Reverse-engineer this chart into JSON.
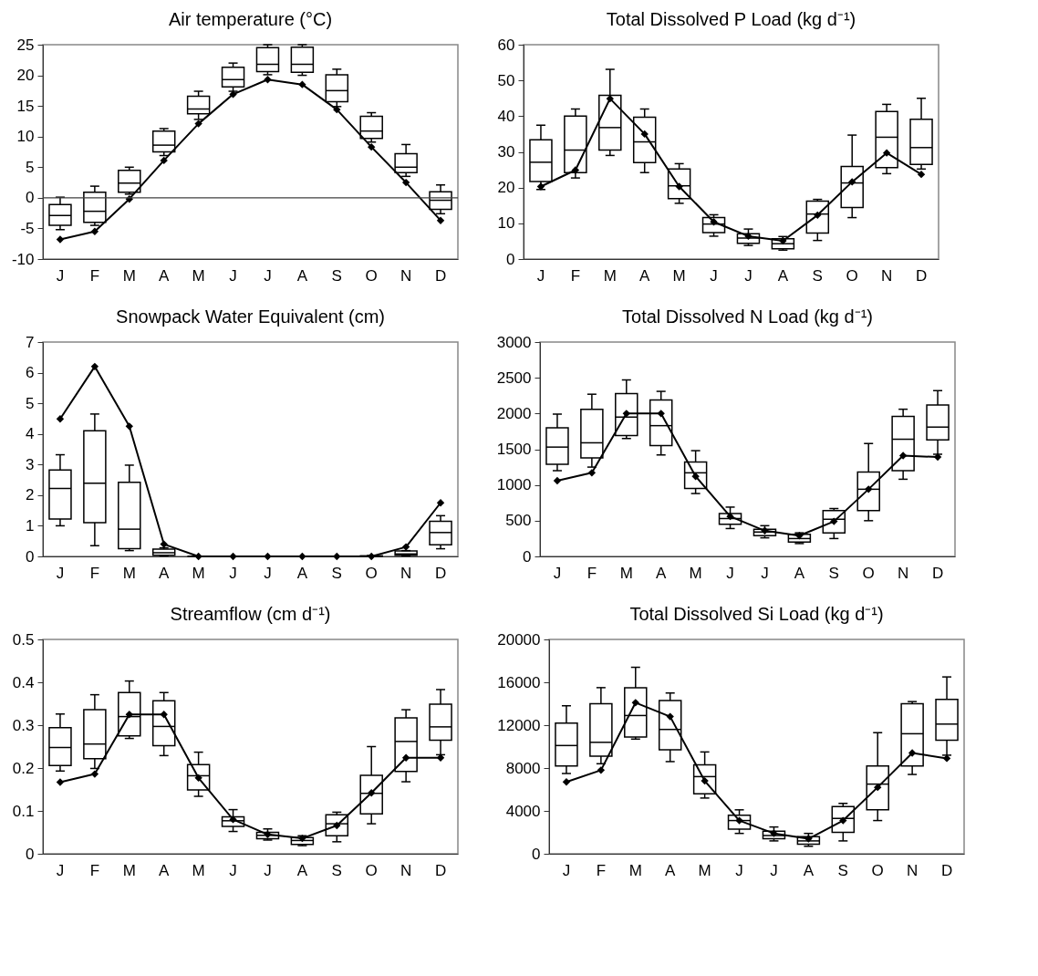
{
  "chart_data": [
    {
      "type": "box",
      "title": "Air temperature (°C)",
      "color": "#000000",
      "categories": [
        "J",
        "F",
        "M",
        "A",
        "M",
        "J",
        "J",
        "A",
        "S",
        "O",
        "N",
        "D"
      ],
      "ylim": [
        -10,
        25
      ],
      "yticks": [
        -10,
        -5,
        0,
        5,
        10,
        15,
        20,
        25
      ],
      "marker": "diamond",
      "boxes": [
        {
          "low": -5.2,
          "q1": -4.5,
          "median": -2.9,
          "q3": -1.1,
          "high": 0.1
        },
        {
          "low": -4.5,
          "q1": -4.0,
          "median": -2.2,
          "q3": 0.9,
          "high": 1.9
        },
        {
          "low": 0.6,
          "q1": 0.9,
          "median": 2.4,
          "q3": 4.5,
          "high": 5.0
        },
        {
          "low": 6.9,
          "q1": 7.5,
          "median": 8.6,
          "q3": 10.9,
          "high": 11.3
        },
        {
          "low": 12.8,
          "q1": 13.7,
          "median": 14.5,
          "q3": 16.6,
          "high": 17.4
        },
        {
          "low": 17.4,
          "q1": 18.1,
          "median": 19.3,
          "q3": 21.3,
          "high": 22.0
        },
        {
          "low": 20.1,
          "q1": 20.6,
          "median": 21.8,
          "q3": 24.5,
          "high": 25.0
        },
        {
          "low": 20.0,
          "q1": 20.5,
          "median": 21.8,
          "q3": 24.6,
          "high": 25.0
        },
        {
          "low": 14.9,
          "q1": 15.7,
          "median": 17.5,
          "q3": 20.1,
          "high": 21.0
        },
        {
          "low": 9.1,
          "q1": 9.7,
          "median": 10.9,
          "q3": 13.3,
          "high": 13.9
        },
        {
          "low": 3.5,
          "q1": 4.1,
          "median": 5.0,
          "q3": 7.2,
          "high": 8.7
        },
        {
          "low": -2.6,
          "q1": -1.9,
          "median": -0.4,
          "q3": 1.0,
          "high": 2.1
        }
      ],
      "series": [
        {
          "type": "line",
          "color": "#000000",
          "values": [
            -6.8,
            -5.5,
            -0.2,
            6.1,
            12.1,
            16.9,
            19.3,
            18.5,
            14.4,
            8.3,
            2.5,
            -3.7
          ]
        }
      ],
      "ref_lines": [
        {
          "axis": "y",
          "value": 0,
          "color": "#404040"
        }
      ]
    },
    {
      "type": "box",
      "title": "Total Dissolved P Load (kg d⁻¹)",
      "color": "#000000",
      "categories": [
        "J",
        "F",
        "M",
        "A",
        "M",
        "J",
        "J",
        "A",
        "S",
        "O",
        "N",
        "D"
      ],
      "ylim": [
        0,
        60
      ],
      "yticks": [
        0,
        10,
        20,
        30,
        40,
        50,
        60
      ],
      "marker": "diamond",
      "boxes": [
        {
          "low": 19.5,
          "q1": 21.7,
          "median": 27.1,
          "q3": 33.4,
          "high": 37.5
        },
        {
          "low": 22.7,
          "q1": 24.2,
          "median": 30.5,
          "q3": 40.0,
          "high": 42.0
        },
        {
          "low": 29.0,
          "q1": 30.5,
          "median": 36.8,
          "q3": 45.8,
          "high": 53.1
        },
        {
          "low": 24.2,
          "q1": 27.0,
          "median": 32.8,
          "q3": 39.7,
          "high": 42.0
        },
        {
          "low": 15.6,
          "q1": 16.9,
          "median": 20.5,
          "q3": 25.2,
          "high": 26.7
        },
        {
          "low": 6.4,
          "q1": 7.4,
          "median": 9.8,
          "q3": 11.6,
          "high": 12.4
        },
        {
          "low": 3.8,
          "q1": 4.4,
          "median": 5.9,
          "q3": 7.1,
          "high": 8.4
        },
        {
          "low": 2.5,
          "q1": 2.9,
          "median": 4.3,
          "q3": 5.7,
          "high": 6.3
        },
        {
          "low": 5.2,
          "q1": 7.3,
          "median": 12.6,
          "q3": 16.2,
          "high": 16.7
        },
        {
          "low": 11.6,
          "q1": 14.4,
          "median": 21.3,
          "q3": 25.9,
          "high": 34.7
        },
        {
          "low": 23.9,
          "q1": 25.6,
          "median": 34.1,
          "q3": 41.3,
          "high": 43.3
        },
        {
          "low": 25.2,
          "q1": 26.5,
          "median": 31.2,
          "q3": 39.1,
          "high": 45.0
        }
      ],
      "series": [
        {
          "type": "line",
          "color": "#000000",
          "values": [
            20.3,
            24.9,
            44.9,
            35.0,
            20.3,
            10.4,
            6.4,
            5.1,
            12.3,
            21.6,
            29.7,
            23.7
          ]
        }
      ]
    },
    {
      "type": "box",
      "title": "Snowpack Water Equivalent (cm)",
      "color": "#000000",
      "categories": [
        "J",
        "F",
        "M",
        "A",
        "M",
        "J",
        "J",
        "A",
        "S",
        "O",
        "N",
        "D"
      ],
      "ylim": [
        0,
        7
      ],
      "yticks": [
        0,
        1,
        2,
        3,
        4,
        5,
        6,
        7
      ],
      "marker": "diamond",
      "boxes": [
        {
          "low": 1.0,
          "q1": 1.22,
          "median": 2.22,
          "q3": 2.82,
          "high": 3.32
        },
        {
          "low": 0.35,
          "q1": 1.1,
          "median": 2.39,
          "q3": 4.1,
          "high": 4.65
        },
        {
          "low": 0.19,
          "q1": 0.25,
          "median": 0.89,
          "q3": 2.42,
          "high": 2.98
        },
        {
          "low": 0.02,
          "q1": 0.04,
          "median": 0.12,
          "q3": 0.24,
          "high": 0.28
        },
        {
          "low": 0,
          "q1": 0,
          "median": 0,
          "q3": 0,
          "high": 0
        },
        {
          "low": 0,
          "q1": 0,
          "median": 0,
          "q3": 0,
          "high": 0
        },
        {
          "low": 0,
          "q1": 0,
          "median": 0,
          "q3": 0,
          "high": 0
        },
        {
          "low": 0,
          "q1": 0,
          "median": 0,
          "q3": 0,
          "high": 0
        },
        {
          "low": 0,
          "q1": 0,
          "median": 0,
          "q3": 0,
          "high": 0
        },
        {
          "low": 0,
          "q1": 0,
          "median": 0,
          "q3": 0.02,
          "high": 0.03
        },
        {
          "low": 0.02,
          "q1": 0.04,
          "median": 0.08,
          "q3": 0.18,
          "high": 0.19
        },
        {
          "low": 0.25,
          "q1": 0.38,
          "median": 0.78,
          "q3": 1.15,
          "high": 1.33
        }
      ],
      "series": [
        {
          "type": "line",
          "color": "#000000",
          "values": [
            4.49,
            6.2,
            4.25,
            0.4,
            0,
            0,
            0,
            0,
            0,
            0,
            0.31,
            1.75
          ]
        }
      ]
    },
    {
      "type": "box",
      "title": "Total Dissolved N Load (kg d⁻¹)",
      "color": "#000000",
      "categories": [
        "J",
        "F",
        "M",
        "A",
        "M",
        "J",
        "J",
        "A",
        "S",
        "O",
        "N",
        "D"
      ],
      "ylim": [
        0,
        3000
      ],
      "yticks": [
        0,
        500,
        1000,
        1500,
        2000,
        2500,
        3000
      ],
      "marker": "diamond",
      "boxes": [
        {
          "low": 1200,
          "q1": 1290,
          "median": 1530,
          "q3": 1800,
          "high": 1990
        },
        {
          "low": 1250,
          "q1": 1380,
          "median": 1590,
          "q3": 2060,
          "high": 2270
        },
        {
          "low": 1650,
          "q1": 1690,
          "median": 1950,
          "q3": 2280,
          "high": 2470
        },
        {
          "low": 1420,
          "q1": 1550,
          "median": 1830,
          "q3": 2190,
          "high": 2310
        },
        {
          "low": 880,
          "q1": 950,
          "median": 1170,
          "q3": 1320,
          "high": 1480
        },
        {
          "low": 390,
          "q1": 450,
          "median": 530,
          "q3": 600,
          "high": 690
        },
        {
          "low": 260,
          "q1": 290,
          "median": 340,
          "q3": 380,
          "high": 430
        },
        {
          "low": 180,
          "q1": 200,
          "median": 250,
          "q3": 310,
          "high": 330
        },
        {
          "low": 250,
          "q1": 330,
          "median": 520,
          "q3": 640,
          "high": 670
        },
        {
          "low": 500,
          "q1": 640,
          "median": 940,
          "q3": 1180,
          "high": 1580
        },
        {
          "low": 1080,
          "q1": 1200,
          "median": 1640,
          "q3": 1960,
          "high": 2060
        },
        {
          "low": 1430,
          "q1": 1630,
          "median": 1810,
          "q3": 2120,
          "high": 2320
        }
      ],
      "series": [
        {
          "type": "line",
          "color": "#000000",
          "values": [
            1060,
            1170,
            2000,
            2000,
            1120,
            560,
            360,
            290,
            490,
            940,
            1410,
            1390
          ]
        }
      ]
    },
    {
      "type": "box",
      "title": "Streamflow (cm d⁻¹)",
      "color": "#000000",
      "categories": [
        "J",
        "F",
        "M",
        "A",
        "M",
        "J",
        "J",
        "A",
        "S",
        "O",
        "N",
        "D"
      ],
      "ylim": [
        0,
        0.5
      ],
      "yticks": [
        0,
        0.1,
        0.2,
        0.3,
        0.4,
        0.5
      ],
      "marker": "diamond",
      "boxes": [
        {
          "low": 0.193,
          "q1": 0.206,
          "median": 0.248,
          "q3": 0.294,
          "high": 0.326
        },
        {
          "low": 0.199,
          "q1": 0.222,
          "median": 0.256,
          "q3": 0.336,
          "high": 0.371
        },
        {
          "low": 0.269,
          "q1": 0.275,
          "median": 0.32,
          "q3": 0.376,
          "high": 0.403
        },
        {
          "low": 0.229,
          "q1": 0.252,
          "median": 0.297,
          "q3": 0.357,
          "high": 0.376
        },
        {
          "low": 0.134,
          "q1": 0.149,
          "median": 0.182,
          "q3": 0.208,
          "high": 0.237
        },
        {
          "low": 0.052,
          "q1": 0.064,
          "median": 0.077,
          "q3": 0.086,
          "high": 0.103
        },
        {
          "low": 0.032,
          "q1": 0.035,
          "median": 0.043,
          "q3": 0.05,
          "high": 0.058
        },
        {
          "low": 0.019,
          "q1": 0.022,
          "median": 0.031,
          "q3": 0.038,
          "high": 0.042
        },
        {
          "low": 0.028,
          "q1": 0.042,
          "median": 0.07,
          "q3": 0.091,
          "high": 0.097
        },
        {
          "low": 0.07,
          "q1": 0.093,
          "median": 0.141,
          "q3": 0.183,
          "high": 0.25
        },
        {
          "low": 0.168,
          "q1": 0.192,
          "median": 0.262,
          "q3": 0.317,
          "high": 0.336
        },
        {
          "low": 0.231,
          "q1": 0.265,
          "median": 0.296,
          "q3": 0.349,
          "high": 0.383
        }
      ],
      "series": [
        {
          "type": "line",
          "color": "#000000",
          "values": [
            0.167,
            0.186,
            0.325,
            0.325,
            0.177,
            0.08,
            0.045,
            0.036,
            0.066,
            0.142,
            0.224,
            0.224
          ]
        }
      ]
    },
    {
      "type": "box",
      "title": "Total Dissolved Si Load (kg d⁻¹)",
      "color": "#000000",
      "categories": [
        "J",
        "F",
        "M",
        "A",
        "M",
        "J",
        "J",
        "A",
        "S",
        "O",
        "N",
        "D"
      ],
      "ylim": [
        0,
        20000
      ],
      "yticks": [
        0,
        4000,
        8000,
        12000,
        16000,
        20000
      ],
      "marker": "diamond",
      "boxes": [
        {
          "low": 7500,
          "q1": 8200,
          "median": 10100,
          "q3": 12200,
          "high": 13800
        },
        {
          "low": 8400,
          "q1": 9100,
          "median": 10400,
          "q3": 14000,
          "high": 15500
        },
        {
          "low": 10700,
          "q1": 10900,
          "median": 12900,
          "q3": 15500,
          "high": 17400
        },
        {
          "low": 8600,
          "q1": 9700,
          "median": 11600,
          "q3": 14300,
          "high": 15000
        },
        {
          "low": 5200,
          "q1": 5600,
          "median": 7200,
          "q3": 8300,
          "high": 9500
        },
        {
          "low": 1900,
          "q1": 2300,
          "median": 3100,
          "q3": 3600,
          "high": 4100
        },
        {
          "low": 1200,
          "q1": 1400,
          "median": 1700,
          "q3": 2100,
          "high": 2500
        },
        {
          "low": 700,
          "q1": 900,
          "median": 1200,
          "q3": 1600,
          "high": 1900
        },
        {
          "low": 1200,
          "q1": 2000,
          "median": 3300,
          "q3": 4400,
          "high": 4700
        },
        {
          "low": 3100,
          "q1": 4100,
          "median": 6500,
          "q3": 8200,
          "high": 11300
        },
        {
          "low": 7400,
          "q1": 8200,
          "median": 11200,
          "q3": 14000,
          "high": 14200
        },
        {
          "low": 9200,
          "q1": 10600,
          "median": 12100,
          "q3": 14400,
          "high": 16500
        }
      ],
      "series": [
        {
          "type": "line",
          "color": "#000000",
          "values": [
            6700,
            7800,
            14100,
            12800,
            6800,
            3100,
            1900,
            1400,
            3100,
            6200,
            9400,
            8900
          ]
        }
      ]
    }
  ]
}
